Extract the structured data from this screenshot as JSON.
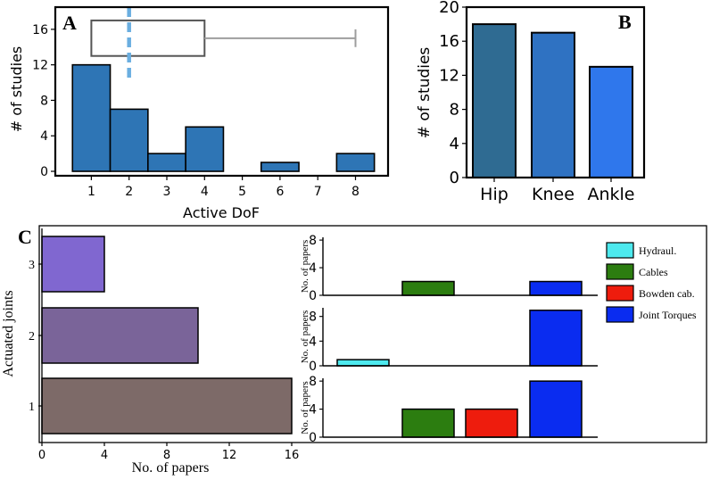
{
  "colors": {
    "hist_bar": "#2e75b5",
    "box": "#555555",
    "whisker": "#9e9e9e",
    "median": "#6aaee0",
    "hip": "#2f6b92",
    "knee": "#2f72c2",
    "ankle": "#2f77ec",
    "joints": [
      "#7d6a68",
      "#7a6499",
      "#8067d0"
    ],
    "hydraul": "#4de9ee",
    "cables": "#2c7d10",
    "bowden": "#ee1c0d",
    "torques": "#0a2cf0",
    "panel_letter": "#a01c1c"
  },
  "chart_data": [
    {
      "type": "bar",
      "panel": "A",
      "xlabel": "Active DoF",
      "ylabel": "# of studies",
      "x": [
        1,
        2,
        3,
        4,
        6,
        8
      ],
      "values": [
        12,
        7,
        2,
        5,
        1,
        2
      ],
      "xticks": [
        "1",
        "2",
        "3",
        "4",
        "5",
        "6",
        "7",
        "8"
      ],
      "yticks": [
        "0",
        "4",
        "8",
        "12",
        "16"
      ],
      "ylim": [
        -0.5,
        18.5
      ],
      "boxplot": {
        "q1": 1,
        "median": 2,
        "q3": 4,
        "whisker_high": 8
      }
    },
    {
      "type": "bar",
      "panel": "B",
      "xlabel": "",
      "ylabel": "# of studies",
      "categories": [
        "Hip",
        "Knee",
        "Ankle"
      ],
      "values": [
        18,
        17,
        13
      ],
      "yticks": [
        "0",
        "4",
        "8",
        "12",
        "16",
        "20"
      ],
      "ylim": [
        0,
        20
      ]
    },
    {
      "type": "bar",
      "orientation": "horizontal",
      "panel": "C",
      "xlabel": "No. of papers",
      "ylabel": "Actuated joints",
      "categories": [
        "1",
        "2",
        "3"
      ],
      "values": [
        16,
        10,
        4
      ],
      "xticks": [
        "0",
        "4",
        "8",
        "12",
        "16"
      ],
      "xlim": [
        0,
        16.1
      ]
    },
    {
      "type": "bar",
      "panel": "C-right",
      "ylabel": "No. of papers",
      "legend": [
        "Hydraul.",
        "Cables",
        "Bowden cab.",
        "Joint Torques"
      ],
      "legend_position": "top-right",
      "rows": [
        {
          "joints": "3",
          "values": [
            0,
            2,
            0,
            2
          ],
          "yticks": [
            "0",
            "4",
            "8"
          ],
          "ymax": 8.4
        },
        {
          "joints": "2",
          "values": [
            1,
            0,
            0,
            9
          ],
          "yticks": [
            "0",
            "4",
            "8"
          ],
          "ymax": 9.4
        },
        {
          "joints": "1",
          "values": [
            0,
            4,
            4,
            8
          ],
          "yticks": [
            "0",
            "4",
            "8"
          ],
          "ymax": 8.4
        }
      ]
    }
  ]
}
